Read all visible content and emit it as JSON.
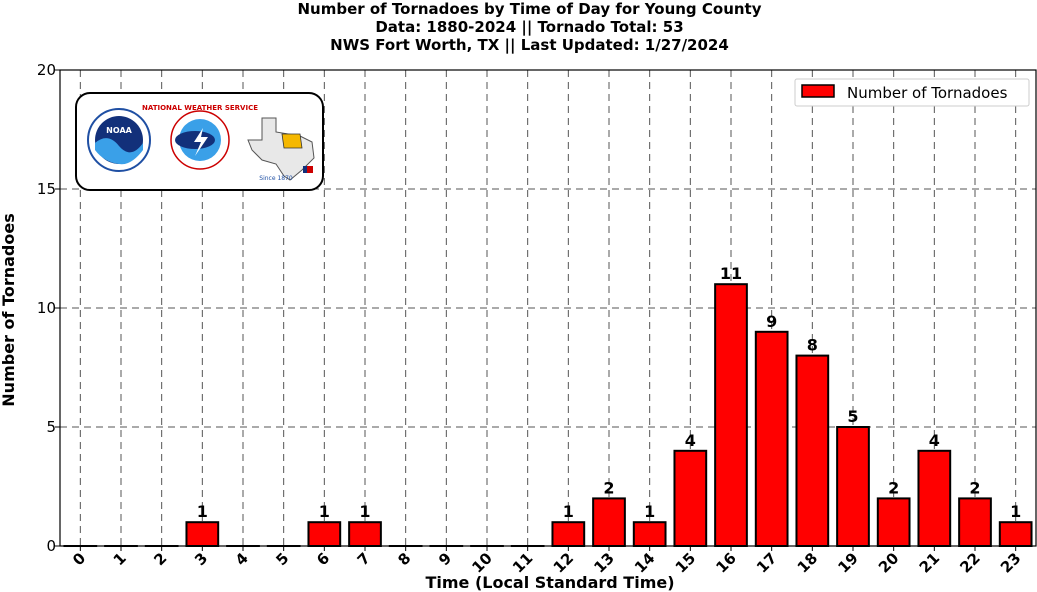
{
  "title": {
    "line1": "Number of Tornadoes by Time of Day for Young County",
    "line2": "Data: 1880-2024 || Tornado Total: 53",
    "line3": "NWS Fort Worth, TX || Last Updated: 1/27/2024"
  },
  "logos": {
    "noaa_text": "NOAA",
    "nws_text": "NATIONAL WEATHER SERVICE",
    "fwd_text": "Since 1870"
  },
  "colors": {
    "bar": "#ff0000",
    "bar_edge": "#000000",
    "grid": "#555555"
  },
  "chart_data": {
    "type": "bar",
    "categories": [
      "0",
      "1",
      "2",
      "3",
      "4",
      "5",
      "6",
      "7",
      "8",
      "9",
      "10",
      "11",
      "12",
      "13",
      "14",
      "15",
      "16",
      "17",
      "18",
      "19",
      "20",
      "21",
      "22",
      "23"
    ],
    "series": [
      {
        "name": "Number of Tornadoes",
        "values": [
          0,
          0,
          0,
          1,
          0,
          0,
          1,
          1,
          0,
          0,
          0,
          0,
          1,
          2,
          1,
          4,
          11,
          9,
          8,
          5,
          2,
          4,
          2,
          1
        ]
      }
    ],
    "xlabel": "Time (Local Standard Time)",
    "ylabel": "Number of Tornadoes",
    "ylim": [
      0,
      20
    ],
    "yticks": [
      0,
      5,
      10,
      15,
      20
    ],
    "grid": true,
    "legend_position": "top-right"
  }
}
